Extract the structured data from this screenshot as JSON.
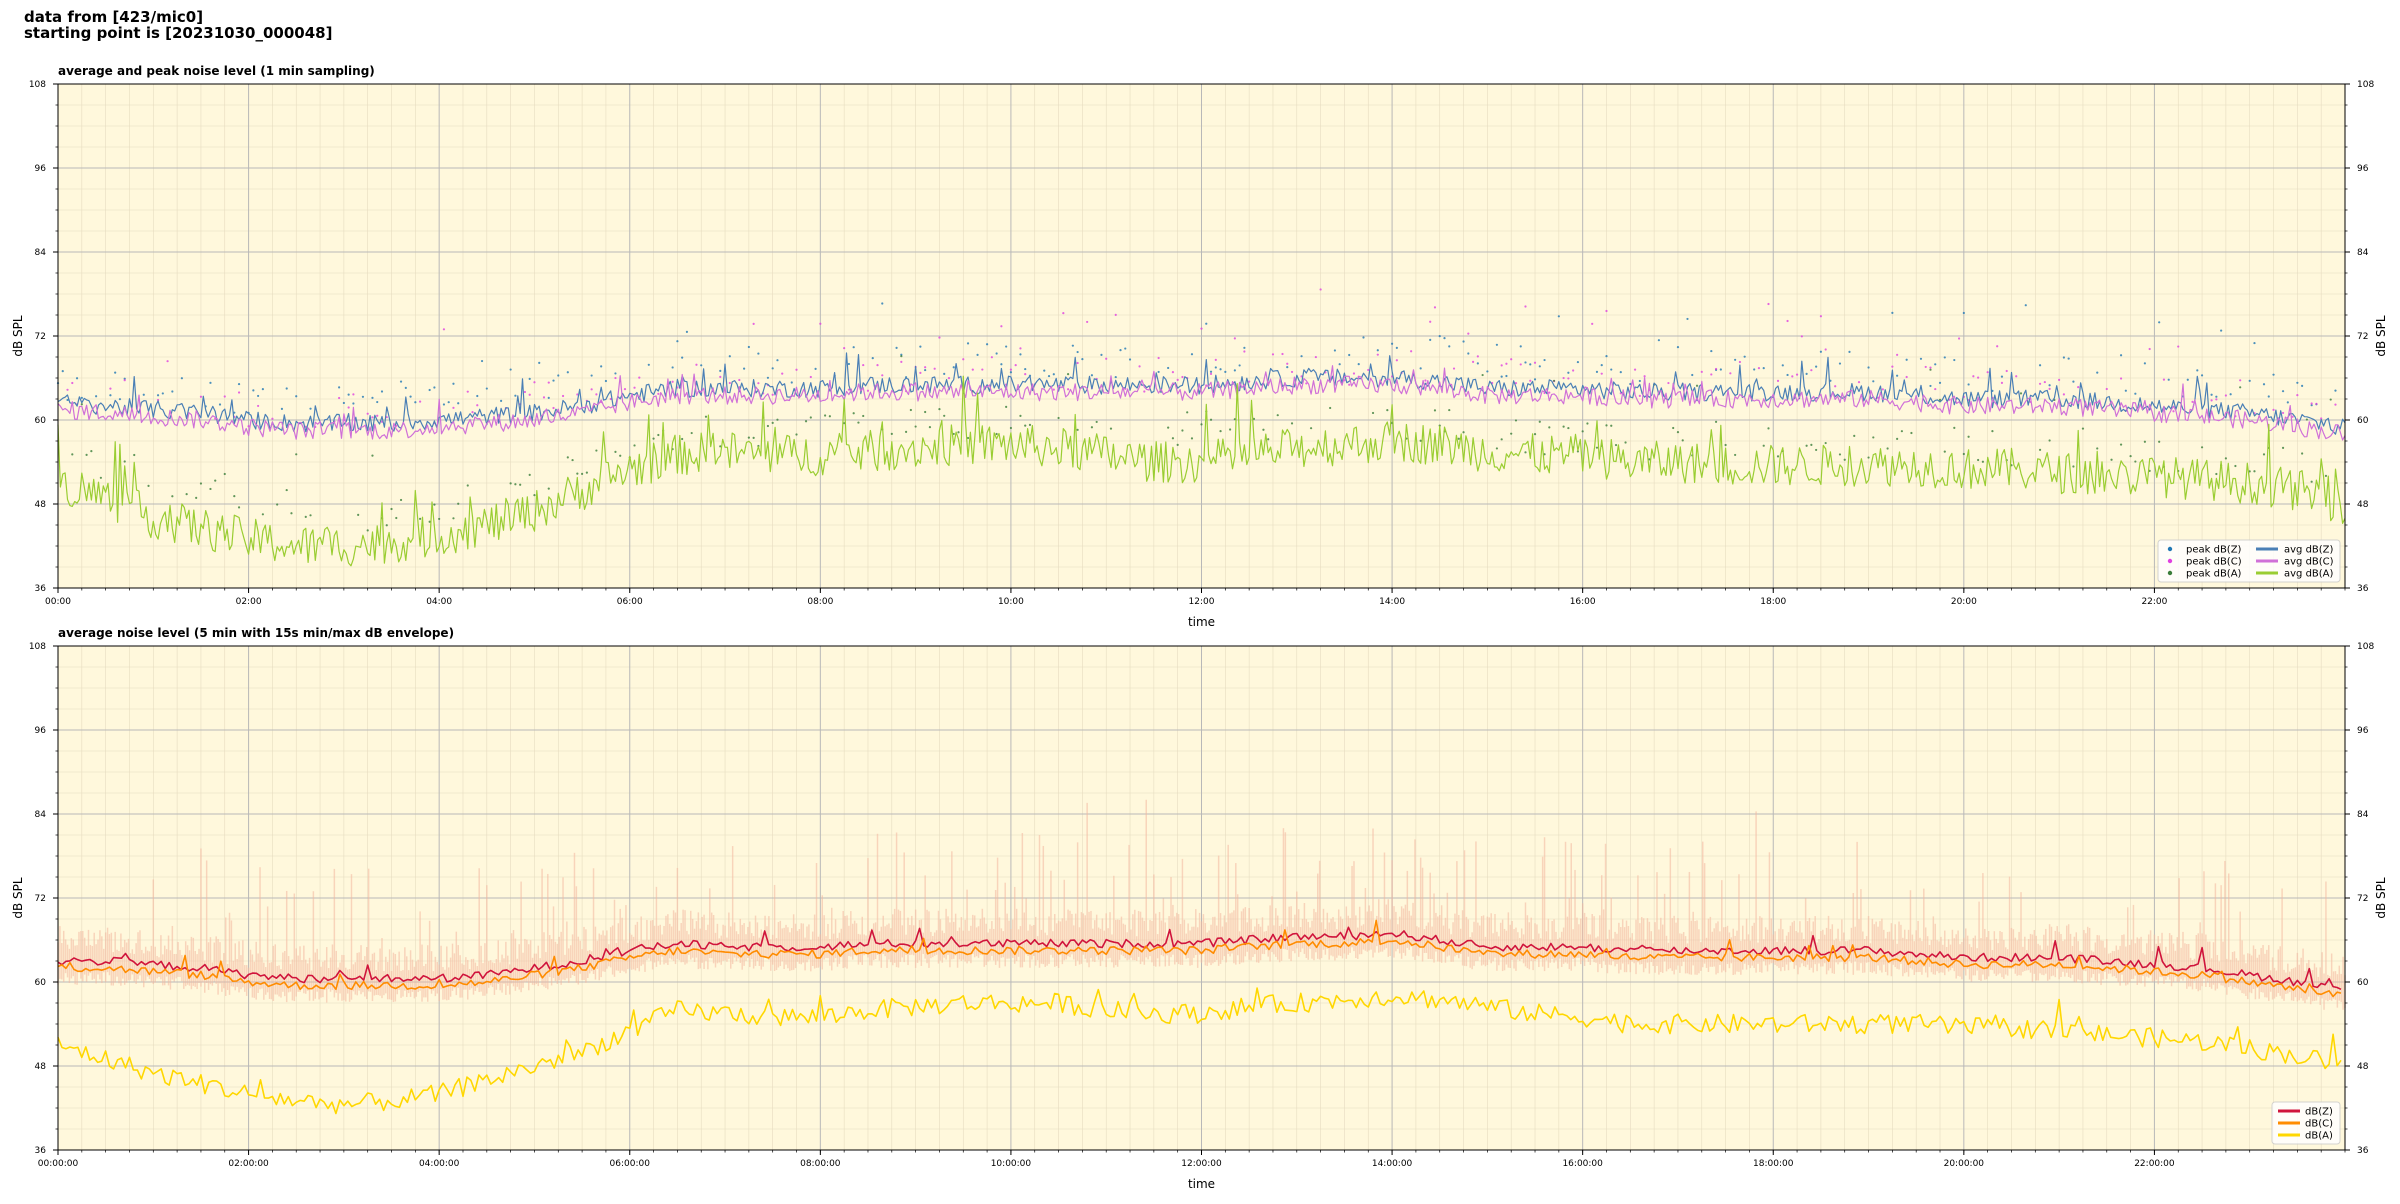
{
  "header": {
    "line1": "data from [423/mic0]",
    "line2": "starting point is [20231030_000048]"
  },
  "colors": {
    "plot_bg": "#fff8dc",
    "peak_z": "#1f77b4",
    "peak_c": "#e040e0",
    "peak_a": "#3a7d3a",
    "avg_z": "#4a7fb5",
    "avg_c": "#d070d8",
    "avg_a": "#9acd32",
    "env_z": "#d0143c",
    "env_c": "#ff8c00",
    "env_a": "#ffd700",
    "envelope": "#f4b8a0"
  },
  "chart_data": [
    {
      "type": "line",
      "title": "average and peak noise level (1 min sampling)",
      "xlabel": "time",
      "ylabel": "dB SPL",
      "xlim": [
        "00:00",
        "24:00"
      ],
      "ylim": [
        36,
        108
      ],
      "yticks": [
        36,
        48,
        60,
        72,
        84,
        96,
        108
      ],
      "xticks": [
        "00:00",
        "02:00",
        "04:00",
        "06:00",
        "08:00",
        "10:00",
        "12:00",
        "14:00",
        "16:00",
        "18:00",
        "20:00",
        "22:00"
      ],
      "grid": true,
      "secondary_y_axis": true,
      "legend_position": "lower-right",
      "x_hours": [
        0,
        0.5,
        1,
        1.5,
        2,
        2.5,
        3,
        3.5,
        4,
        4.5,
        5,
        5.5,
        6,
        6.5,
        7,
        7.5,
        8,
        8.5,
        9,
        9.5,
        10,
        10.5,
        11,
        11.5,
        12,
        12.5,
        13,
        13.5,
        14,
        14.5,
        15,
        15.5,
        16,
        16.5,
        17,
        17.5,
        18,
        18.5,
        19,
        19.5,
        20,
        20.5,
        21,
        21.5,
        22,
        22.5,
        23,
        23.5,
        24
      ],
      "series": [
        {
          "name": "peak dB(Z)",
          "kind": "points",
          "values": [
            64,
            64,
            63.5,
            63,
            63,
            63,
            63,
            63,
            63,
            64,
            64.5,
            65,
            66,
            67,
            67,
            67,
            67.5,
            68,
            68,
            68,
            68,
            68,
            68,
            68,
            68.5,
            69,
            69,
            69,
            69,
            69,
            68,
            67.5,
            67,
            67,
            67,
            67,
            67,
            67,
            67,
            67,
            66,
            66,
            66,
            65.5,
            65,
            64.5,
            64,
            63,
            62
          ]
        },
        {
          "name": "peak dB(C)",
          "kind": "points",
          "values": [
            62.5,
            62.5,
            62,
            61.5,
            61,
            61,
            61,
            61,
            61,
            62,
            62.5,
            63,
            64,
            65,
            65,
            65,
            65.5,
            66,
            66,
            66,
            66,
            66,
            66,
            66,
            66.5,
            67,
            67,
            67,
            67,
            67,
            66,
            65.5,
            65,
            65,
            65,
            65,
            65,
            65,
            65,
            65,
            64,
            64,
            64,
            63.5,
            63,
            62.5,
            62,
            61,
            60
          ]
        },
        {
          "name": "peak dB(A)",
          "kind": "points",
          "values": [
            54,
            53,
            51,
            50,
            48,
            47,
            46,
            46,
            47,
            49,
            51,
            53,
            56,
            57,
            58,
            58,
            58,
            58.5,
            59,
            59,
            59,
            58,
            58,
            58,
            58.5,
            59,
            59,
            59,
            59,
            59,
            58,
            57,
            57,
            56,
            56,
            56,
            56,
            56,
            56,
            56,
            56,
            55.5,
            55.5,
            55,
            54.5,
            54,
            53.5,
            53,
            52
          ]
        },
        {
          "name": "avg dB(Z)",
          "kind": "line",
          "values": [
            62.5,
            62,
            61.5,
            61,
            60,
            59.5,
            59.5,
            59.5,
            60,
            60.5,
            61,
            62,
            63.5,
            64.5,
            64.5,
            64.5,
            64.5,
            65,
            65,
            65,
            65,
            65,
            65,
            65,
            65,
            65.5,
            66,
            66,
            66,
            65.5,
            64.5,
            64.5,
            64.5,
            64,
            64,
            64,
            64,
            64,
            64,
            63.5,
            63,
            63,
            63,
            62.5,
            62,
            61.5,
            61,
            60,
            59
          ]
        },
        {
          "name": "avg dB(C)",
          "kind": "line",
          "values": [
            61.5,
            61,
            60.5,
            60,
            59,
            58.5,
            58.5,
            58.5,
            59,
            59.5,
            60,
            61,
            62.5,
            63.5,
            63.5,
            63.5,
            63.5,
            64,
            64,
            64,
            64,
            64,
            64,
            64,
            64,
            64.5,
            65,
            65,
            65,
            64.5,
            63.5,
            63.5,
            63.5,
            63,
            63,
            63,
            63,
            63,
            63,
            62.5,
            62,
            62,
            62,
            61.5,
            61,
            60.5,
            60,
            59,
            58
          ]
        },
        {
          "name": "avg dB(A)",
          "kind": "line",
          "values": [
            51,
            49,
            46,
            44.5,
            43,
            42,
            42,
            42.5,
            43.5,
            45,
            47,
            50,
            53,
            55,
            55.5,
            55,
            55,
            55.5,
            56,
            56.5,
            56.5,
            56,
            55,
            54,
            54,
            55,
            56,
            56.5,
            57,
            56.5,
            55.5,
            55,
            55,
            54,
            54,
            53.5,
            53.5,
            53.5,
            53.5,
            53.5,
            53,
            53,
            52.5,
            52,
            52,
            51.5,
            51,
            50,
            48
          ]
        }
      ]
    },
    {
      "type": "line",
      "title": "average noise level (5 min with 15s min/max dB envelope)",
      "xlabel": "time",
      "ylabel": "dB SPL",
      "xlim": [
        "00:00:00",
        "24:00:00"
      ],
      "ylim": [
        36,
        108
      ],
      "yticks": [
        36,
        48,
        60,
        72,
        84,
        96,
        108
      ],
      "xticks": [
        "00:00:00",
        "02:00:00",
        "04:00:00",
        "06:00:00",
        "08:00:00",
        "10:00:00",
        "12:00:00",
        "14:00:00",
        "16:00:00",
        "18:00:00",
        "20:00:00",
        "22:00:00"
      ],
      "grid": true,
      "secondary_y_axis": true,
      "legend_position": "lower-right",
      "x_hours": [
        0,
        0.5,
        1,
        1.5,
        2,
        2.5,
        3,
        3.5,
        4,
        4.5,
        5,
        5.5,
        6,
        6.5,
        7,
        7.5,
        8,
        8.5,
        9,
        9.5,
        10,
        10.5,
        11,
        11.5,
        12,
        12.5,
        13,
        13.5,
        14,
        14.5,
        15,
        15.5,
        16,
        16.5,
        17,
        17.5,
        18,
        18.5,
        19,
        19.5,
        20,
        20.5,
        21,
        21.5,
        22,
        22.5,
        23,
        23.5,
        24
      ],
      "series": [
        {
          "name": "dB(Z)",
          "kind": "line",
          "values": [
            63,
            63,
            62.5,
            62,
            61,
            60.5,
            60.5,
            60.5,
            60.5,
            61,
            62,
            63,
            64.5,
            65.5,
            65,
            65,
            65,
            65.5,
            65.5,
            65.5,
            65.5,
            65.5,
            65.5,
            65.5,
            65.5,
            66,
            66.5,
            66.5,
            67,
            66,
            65,
            65,
            65,
            64.5,
            64.5,
            64.5,
            64.5,
            64.5,
            64.5,
            64,
            63.5,
            63.5,
            63.5,
            63,
            62.5,
            62,
            61,
            60,
            59
          ]
        },
        {
          "name": "dB(C)",
          "kind": "line",
          "values": [
            62,
            62,
            61.5,
            61,
            60,
            59.5,
            59.5,
            59.5,
            59.5,
            60,
            61,
            62,
            63.5,
            64.5,
            64,
            64,
            64,
            64.5,
            64.5,
            64.5,
            64.5,
            64.5,
            64.5,
            64.5,
            64.5,
            65,
            65.5,
            65.5,
            66,
            65,
            64,
            64,
            64,
            63.5,
            63.5,
            63.5,
            63.5,
            63.5,
            63.5,
            63,
            62.5,
            62.5,
            62.5,
            62,
            61.5,
            61,
            60,
            59,
            58
          ]
        },
        {
          "name": "dB(A)",
          "kind": "line",
          "values": [
            51,
            49,
            47,
            45.5,
            44,
            43,
            42.5,
            43,
            44,
            46,
            48,
            50,
            53,
            56,
            55.5,
            55,
            55,
            56,
            56.5,
            57,
            57,
            57,
            56,
            55.5,
            55.5,
            56.5,
            57,
            57.5,
            58,
            57.5,
            56.5,
            55.5,
            55,
            54,
            54,
            54,
            54,
            54,
            54,
            54,
            53.5,
            53.5,
            53,
            52.5,
            52,
            51.5,
            50.5,
            49.5,
            48
          ]
        }
      ]
    }
  ]
}
